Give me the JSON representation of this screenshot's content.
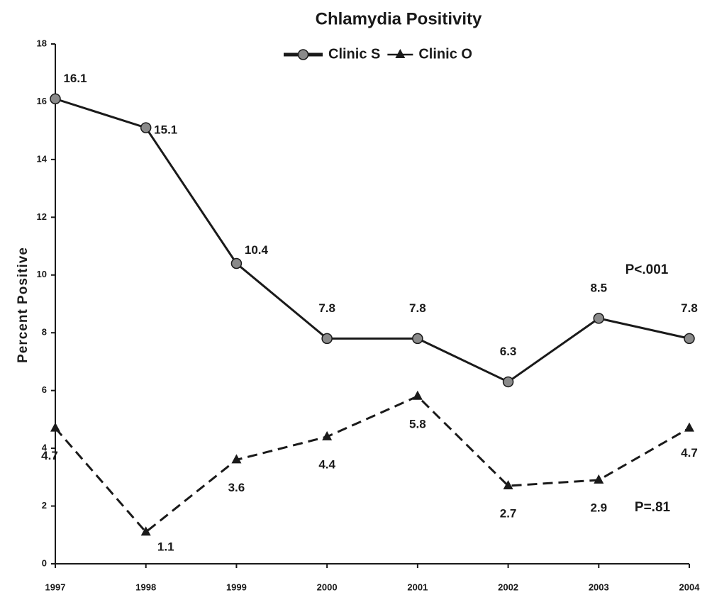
{
  "chart_data": {
    "type": "line",
    "title": "Chlamydia Positivity",
    "y_label": "Percent Positive",
    "categories": [
      "1997",
      "1998",
      "1999",
      "2000",
      "2001",
      "2002",
      "2003",
      "2004"
    ],
    "series": [
      {
        "name": "Clinic S",
        "color": "#1a1a1a",
        "style": "solid",
        "marker": "circle",
        "values": [
          16.1,
          15.1,
          10.4,
          7.8,
          7.8,
          6.3,
          8.5,
          7.8
        ]
      },
      {
        "name": "Clinic O",
        "color": "#1a1a1a",
        "style": "dashed",
        "marker": "triangle",
        "values": [
          4.7,
          1.1,
          3.6,
          4.4,
          5.8,
          2.7,
          2.9,
          4.7
        ]
      }
    ],
    "ylim": [
      0,
      18
    ],
    "yticks": [
      0,
      2,
      4,
      6,
      8,
      10,
      12,
      14,
      16,
      18
    ],
    "annotations": [
      "P<.001",
      "P=.81"
    ],
    "legend": "top",
    "grid": false
  }
}
